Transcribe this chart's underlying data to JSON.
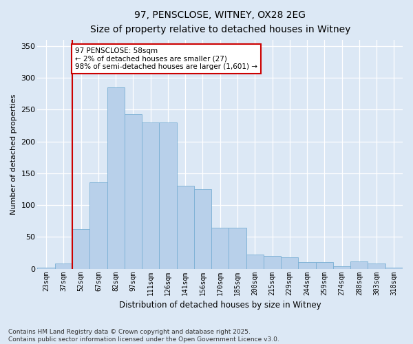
{
  "title_line1": "97, PENSCLOSE, WITNEY, OX28 2EG",
  "title_line2": "Size of property relative to detached houses in Witney",
  "xlabel": "Distribution of detached houses by size in Witney",
  "ylabel": "Number of detached properties",
  "footnote": "Contains HM Land Registry data © Crown copyright and database right 2025.\nContains public sector information licensed under the Open Government Licence v3.0.",
  "bin_labels": [
    "23sqm",
    "37sqm",
    "52sqm",
    "67sqm",
    "82sqm",
    "97sqm",
    "111sqm",
    "126sqm",
    "141sqm",
    "156sqm",
    "170sqm",
    "185sqm",
    "200sqm",
    "215sqm",
    "229sqm",
    "244sqm",
    "259sqm",
    "274sqm",
    "288sqm",
    "303sqm",
    "318sqm"
  ],
  "bar_values": [
    2,
    8,
    62,
    136,
    285,
    243,
    230,
    230,
    130,
    125,
    65,
    65,
    22,
    20,
    18,
    10,
    10,
    4,
    12,
    8,
    2
  ],
  "bar_color": "#b8d0ea",
  "bar_edge_color": "#7aafd4",
  "vline_x": 1.5,
  "vline_color": "#cc0000",
  "annotation_text": "97 PENSCLOSE: 58sqm\n← 2% of detached houses are smaller (27)\n98% of semi-detached houses are larger (1,601) →",
  "annotation_box_facecolor": "#ffffff",
  "annotation_box_edgecolor": "#cc0000",
  "ylim_max": 360,
  "yticks": [
    0,
    50,
    100,
    150,
    200,
    250,
    300,
    350
  ],
  "bg_color": "#dce8f5",
  "grid_color": "#c8d8ec",
  "title_fontsize": 10,
  "subtitle_fontsize": 9,
  "tick_fontsize": 7,
  "axis_label_fontsize": 8.5,
  "footnote_fontsize": 6.5,
  "ylabel_fontsize": 8
}
